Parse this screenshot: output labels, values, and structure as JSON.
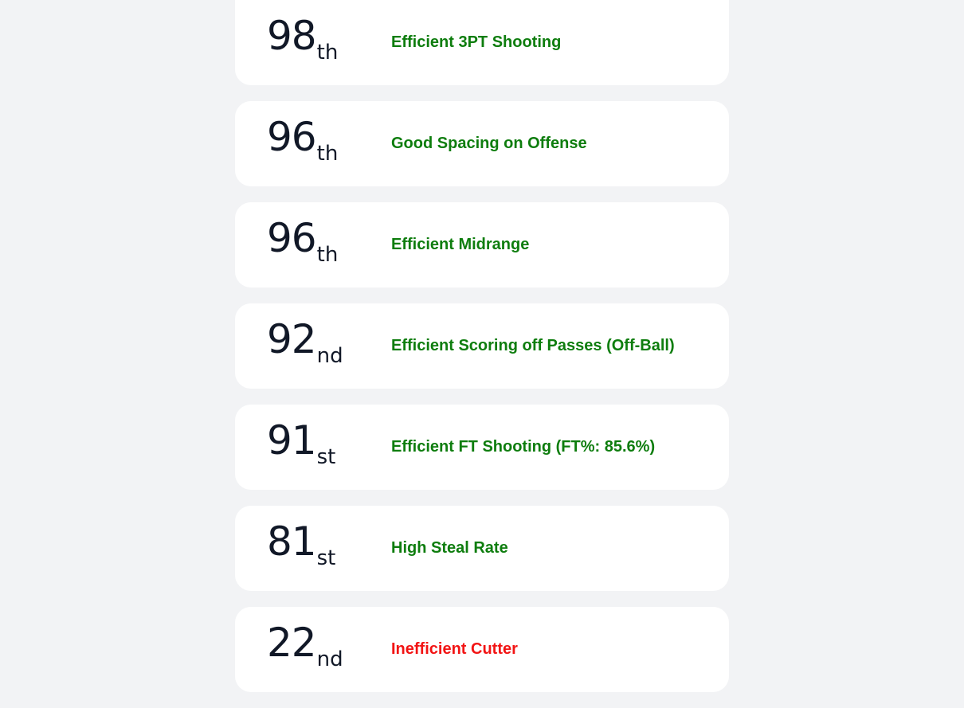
{
  "colors": {
    "background": "#f2f3f5",
    "card": "#ffffff",
    "number": "#111827",
    "positive": "#0e7d0e",
    "negative": "#f21414"
  },
  "items": [
    {
      "number": "98",
      "suffix": "th",
      "label": "Efficient 3PT Shooting",
      "sentiment": "positive"
    },
    {
      "number": "96",
      "suffix": "th",
      "label": "Good Spacing on Offense",
      "sentiment": "positive"
    },
    {
      "number": "96",
      "suffix": "th",
      "label": "Efficient Midrange",
      "sentiment": "positive"
    },
    {
      "number": "92",
      "suffix": "nd",
      "label": "Efficient Scoring off Passes (Off-Ball)",
      "sentiment": "positive"
    },
    {
      "number": "91",
      "suffix": "st",
      "label": "Efficient FT Shooting (FT%: 85.6%)",
      "sentiment": "positive"
    },
    {
      "number": "81",
      "suffix": "st",
      "label": "High Steal Rate",
      "sentiment": "positive"
    },
    {
      "number": "22",
      "suffix": "nd",
      "label": "Inefficient Cutter",
      "sentiment": "negative"
    }
  ]
}
